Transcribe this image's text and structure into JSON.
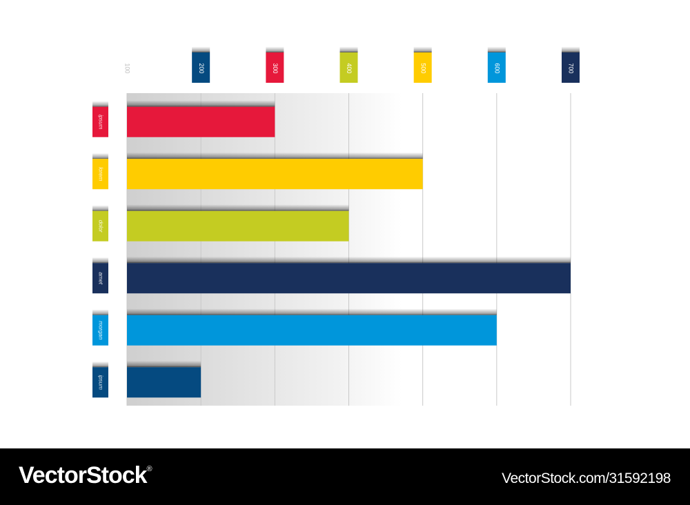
{
  "chart_data": {
    "type": "bar",
    "orientation": "horizontal",
    "categories": [
      "ipsum",
      "lorem",
      "dolor",
      "amet",
      "morgan",
      "ipsum"
    ],
    "values": [
      300,
      500,
      400,
      700,
      600,
      200
    ],
    "bar_colors": [
      "#e6183b",
      "#ffcc00",
      "#c4cc22",
      "#19305c",
      "#0096db",
      "#054a80"
    ],
    "x_ticks": [
      {
        "label": "100",
        "value": 100,
        "color": null
      },
      {
        "label": "200",
        "value": 200,
        "color": "#054a80"
      },
      {
        "label": "300",
        "value": 300,
        "color": "#e6183b"
      },
      {
        "label": "400",
        "value": 400,
        "color": "#c4cc22"
      },
      {
        "label": "500",
        "value": 500,
        "color": "#ffcc00"
      },
      {
        "label": "600",
        "value": 600,
        "color": "#0096db"
      },
      {
        "label": "700",
        "value": 700,
        "color": "#19305c"
      }
    ],
    "xlim": [
      100,
      700
    ],
    "grid": true,
    "legend_position": "left",
    "title": "",
    "xlabel": "",
    "ylabel": ""
  },
  "footer": {
    "brand": "VectorStock",
    "brand_mark": "®",
    "image_id": "VectorStock.com/31592198"
  }
}
